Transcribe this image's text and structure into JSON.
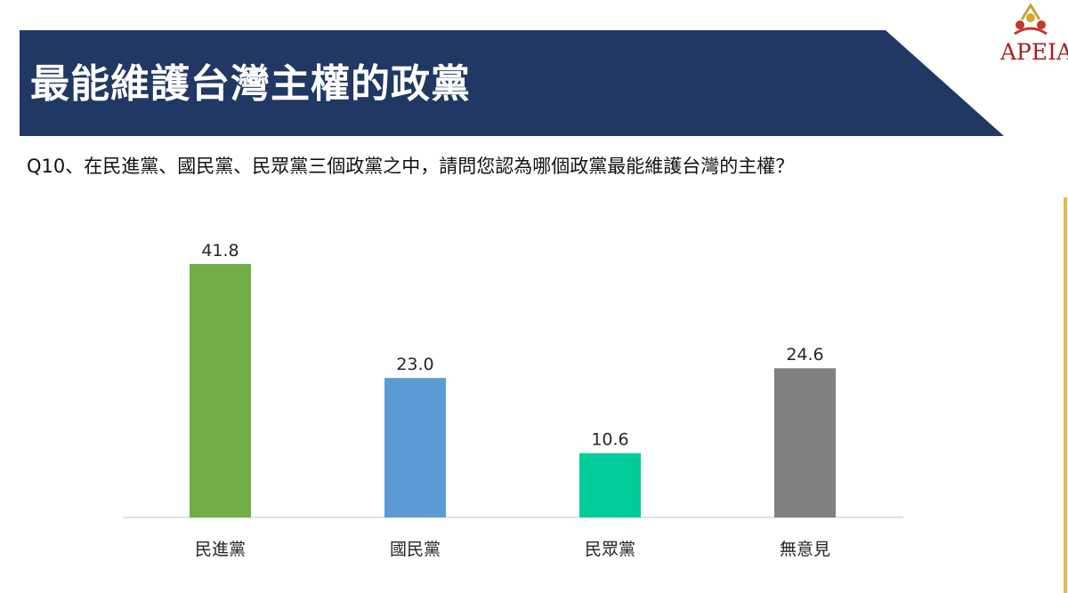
{
  "slide": {
    "title": "最能維護台灣主權的政黨",
    "question": "Q10、在民進黨、國民黨、民眾黨三個政黨之中，請問您認為哪個政黨最能維護台灣的主權？",
    "logo_text": "APEIA",
    "banner_color": "#213864"
  },
  "chart_data": {
    "type": "bar",
    "title": "",
    "xlabel": "",
    "ylabel": "",
    "categories": [
      "民進黨",
      "國民黨",
      "民眾黨",
      "無意見"
    ],
    "values": [
      41.8,
      23.0,
      10.6,
      24.6
    ],
    "value_labels": [
      "41.8",
      "23.0",
      "10.6",
      "24.6"
    ],
    "colors": [
      "#70ad47",
      "#5b9bd5",
      "#00cc99",
      "#808080"
    ],
    "ylim": [
      0,
      50
    ],
    "grid": false,
    "legend": "none"
  }
}
